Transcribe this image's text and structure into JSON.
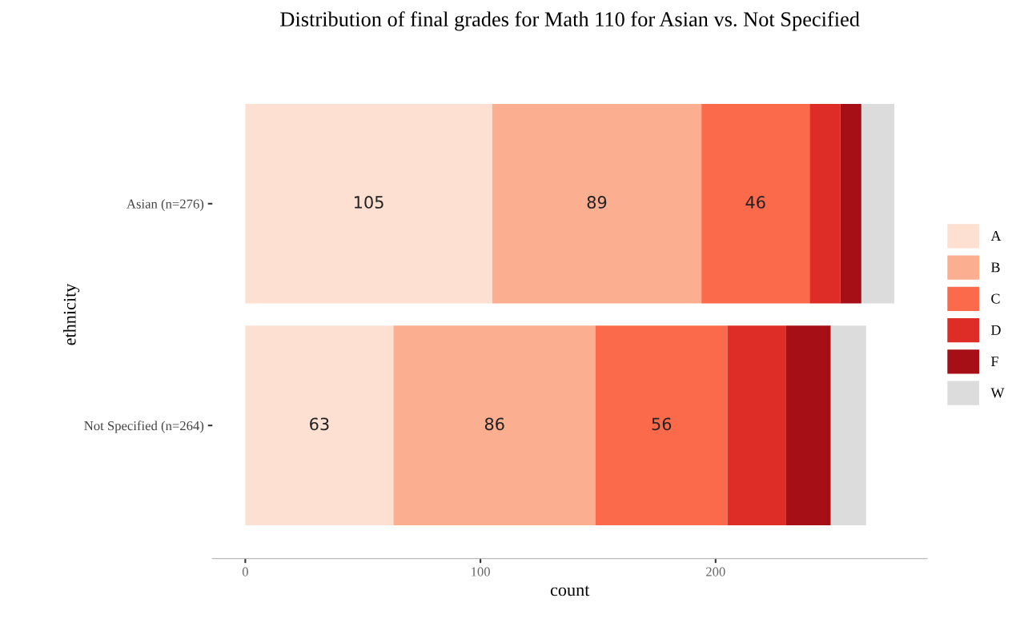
{
  "chart_data": {
    "type": "bar",
    "orientation": "horizontal",
    "stacked": true,
    "title": "Distribution of final grades for Math 110 for Asian vs. Not Specified",
    "xlabel": "count",
    "ylabel": "ethnicity",
    "categories": [
      "Asian (n=276)",
      "Not Specified (n=264)"
    ],
    "series": [
      {
        "name": "A",
        "color": "#fee0d2",
        "values": [
          105,
          63
        ],
        "value_labels": [
          "105",
          "63"
        ]
      },
      {
        "name": "B",
        "color": "#fcae91",
        "values": [
          89,
          86
        ],
        "value_labels": [
          "89",
          "86"
        ]
      },
      {
        "name": "C",
        "color": "#fb6a4a",
        "values": [
          46,
          56
        ],
        "value_labels": [
          "46",
          "56"
        ]
      },
      {
        "name": "D",
        "color": "#de2d26",
        "values": [
          13,
          25
        ]
      },
      {
        "name": "F",
        "color": "#a50f15",
        "values": [
          9,
          19
        ]
      },
      {
        "name": "W",
        "color": "#dcdcdc",
        "values": [
          14,
          15
        ]
      }
    ],
    "xlim": [
      -14,
      290
    ],
    "xticks": [
      0,
      100,
      200
    ],
    "grid": false,
    "legend": "right"
  }
}
